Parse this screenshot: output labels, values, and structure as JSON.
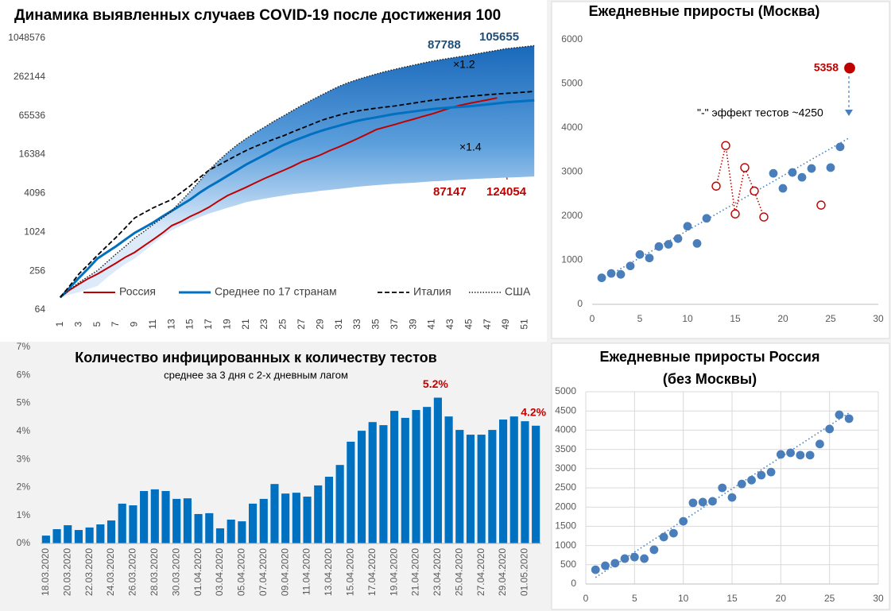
{
  "chart_data": [
    {
      "type": "line",
      "title": "Динамика выявленных случаев COVID-19 после достижения 100",
      "log_y": true,
      "grid": false,
      "legend": "bottom",
      "x": [
        1,
        2,
        3,
        4,
        5,
        6,
        7,
        8,
        9,
        10,
        11,
        12,
        13,
        14,
        15,
        16,
        17,
        18,
        19,
        20,
        21,
        22,
        23,
        24,
        25,
        26,
        27,
        28,
        29,
        30,
        31,
        32,
        33,
        34,
        35,
        36,
        37,
        38,
        39,
        40,
        41,
        42,
        43,
        44,
        45,
        46,
        47,
        48,
        49,
        50,
        51,
        52
      ],
      "xlim": [
        0.5,
        52.5
      ],
      "xticks": [
        1,
        3,
        5,
        7,
        9,
        11,
        13,
        15,
        17,
        19,
        21,
        23,
        25,
        27,
        29,
        31,
        33,
        35,
        37,
        39,
        41,
        43,
        45,
        47,
        49,
        51
      ],
      "ylim": [
        64,
        1048576
      ],
      "yticks": [
        64,
        256,
        1024,
        4096,
        16384,
        65536,
        262144,
        1048576
      ],
      "band_lower": [
        100,
        110,
        120,
        135,
        150,
        200,
        260,
        330,
        400,
        520,
        680,
        880,
        1100,
        1300,
        1500,
        1750,
        2000,
        2200,
        2450,
        2700,
        3000,
        3200,
        3400,
        3600,
        3800,
        4000,
        4150,
        4300,
        4500,
        4650,
        4800,
        5000,
        5200,
        5350,
        5500,
        5650,
        5800,
        5900,
        6000,
        6150,
        6300,
        6400,
        6550,
        6650,
        6800,
        6900,
        7000,
        7100,
        7200,
        7300,
        7400,
        7500
      ],
      "series": [
        {
          "name": "Россия",
          "color": "#c00000",
          "dash": "solid",
          "width": 2,
          "values": [
            100,
            130,
            160,
            195,
            230,
            280,
            340,
            420,
            500,
            630,
            790,
            1000,
            1300,
            1500,
            1800,
            2100,
            2500,
            3100,
            3800,
            4400,
            5100,
            6000,
            7000,
            8100,
            9300,
            10800,
            12700,
            14300,
            16200,
            18900,
            21600,
            25000,
            29000,
            34000,
            40000,
            44000,
            48000,
            53000,
            58000,
            64000,
            70000,
            78000,
            87147,
            95000,
            102000,
            109000,
            116000,
            124054,
            null,
            null,
            null,
            null
          ]
        },
        {
          "name": "Среднее по 17 странам",
          "color": "#0070c0",
          "dash": "solid",
          "width": 3,
          "values": [
            100,
            140,
            200,
            280,
            400,
            500,
            620,
            790,
            1000,
            1200,
            1450,
            1800,
            2200,
            2700,
            3300,
            4200,
            5200,
            6300,
            7700,
            9400,
            11500,
            13700,
            16300,
            19400,
            23000,
            26500,
            30000,
            34000,
            38000,
            42000,
            46000,
            50500,
            55000,
            58500,
            62000,
            66000,
            70000,
            73000,
            76500,
            80000,
            83000,
            85500,
            88000,
            90000,
            92000,
            95000,
            98500,
            102000,
            106000,
            108500,
            111000,
            114000
          ]
        },
        {
          "name": "Италия",
          "color": "#000000",
          "dash": "dashed",
          "width": 1.8,
          "values": [
            100,
            150,
            230,
            320,
            450,
            620,
            850,
            1200,
            1700,
            2050,
            2450,
            2850,
            3300,
            4200,
            5400,
            7200,
            9400,
            11200,
            13400,
            16000,
            19000,
            22000,
            25000,
            28500,
            32000,
            37000,
            42000,
            48000,
            55000,
            61000,
            67000,
            73000,
            78000,
            82000,
            86000,
            89500,
            93000,
            98000,
            103000,
            108500,
            114000,
            118000,
            122500,
            127000,
            131000,
            135000,
            139000,
            142500,
            146000,
            149000,
            152500,
            156000
          ]
        },
        {
          "name": "США",
          "color": "#222222",
          "dash": "dotted",
          "width": 1.5,
          "values": [
            100,
            130,
            170,
            210,
            260,
            350,
            470,
            620,
            830,
            1050,
            1350,
            1700,
            2200,
            3100,
            4400,
            6400,
            9400,
            13000,
            17500,
            23000,
            29000,
            36000,
            44000,
            54000,
            65000,
            79000,
            95000,
            114000,
            135000,
            160000,
            188000,
            214000,
            240000,
            265000,
            292000,
            318000,
            345000,
            372000,
            400000,
            430000,
            460000,
            487000,
            515000,
            542000,
            570000,
            605000,
            642000,
            680000,
            720000,
            746000,
            773000,
            800000
          ]
        }
      ],
      "annotations": [
        {
          "value": 87788,
          "color": "#1f4e79"
        },
        {
          "value": 105655,
          "color": "#1f4e79"
        },
        {
          "text": "×1.2",
          "color": "#000000"
        },
        {
          "text": "×1.4",
          "color": "#000000"
        },
        {
          "value": 87147,
          "color": "#c00000"
        },
        {
          "value": 124054,
          "color": "#c00000"
        }
      ]
    },
    {
      "type": "scatter",
      "title": "Ежедневные приросты (Москва)",
      "grid": false,
      "xlim": [
        0,
        30
      ],
      "xticks": [
        0,
        5,
        10,
        15,
        20,
        25,
        30
      ],
      "ylim": [
        0,
        6000
      ],
      "yticks": [
        0,
        1000,
        2000,
        3000,
        4000,
        5000,
        6000
      ],
      "series": [
        {
          "color": "#4a7ebb",
          "marker": "filled",
          "x": [
            1,
            2,
            3,
            4,
            5,
            6,
            7,
            8,
            9,
            10,
            11,
            12,
            19,
            20,
            21,
            22,
            23,
            25,
            26
          ],
          "values": [
            600,
            700,
            680,
            870,
            1130,
            1050,
            1310,
            1360,
            1490,
            1770,
            1380,
            1950,
            2970,
            2630,
            2990,
            2880,
            3080,
            3100,
            3570
          ]
        },
        {
          "color": "#c00000",
          "marker": "hollow",
          "connect": true,
          "x": [
            13,
            14,
            15,
            16,
            17,
            18
          ],
          "values": [
            2680,
            3600,
            2050,
            3100,
            2570,
            1980
          ]
        },
        {
          "color": "#c00000",
          "marker": "hollow",
          "x": [
            24
          ],
          "values": [
            2250
          ]
        },
        {
          "color": "#c00000",
          "marker": "filled",
          "data_labels": true,
          "x": [
            27
          ],
          "values": [
            5358
          ]
        }
      ],
      "trendline": {
        "color": "#4a7ebb",
        "x": [
          1,
          27
        ],
        "values": [
          560,
          3780
        ]
      },
      "annotation": "\"-\" эффект тестов ~4250"
    },
    {
      "type": "bar",
      "title": "Количество инфицированных к количеству тестов",
      "subtitle": "среднее за 3 дня с 2-х дневным лагом",
      "color": "#0070c0",
      "label_color": "#c00000",
      "grid": false,
      "categories": [
        "18.03.2020",
        null,
        "20.03.2020",
        null,
        "22.03.2020",
        null,
        "24.03.2020",
        null,
        "26.03.2020",
        null,
        "28.03.2020",
        null,
        "30.03.2020",
        null,
        "01.04.2020",
        null,
        "03.04.2020",
        null,
        "05.04.2020",
        null,
        "07.04.2020",
        null,
        "09.04.2020",
        null,
        "11.04.2020",
        null,
        "13.04.2020",
        null,
        "15.04.2020",
        null,
        "17.04.2020",
        null,
        "19.04.2020",
        null,
        "21.04.2020",
        null,
        "23.04.2020",
        null,
        "25.04.2020",
        null,
        "27.04.2020",
        null,
        "29.04.2020",
        null,
        "01.05.2020",
        null
      ],
      "values": [
        0.28,
        0.51,
        0.65,
        0.48,
        0.57,
        0.68,
        0.82,
        1.42,
        1.36,
        1.87,
        1.93,
        1.87,
        1.59,
        1.61,
        1.05,
        1.08,
        0.54,
        0.85,
        0.79,
        1.42,
        1.59,
        2.12,
        1.78,
        1.81,
        1.67,
        2.07,
        2.38,
        2.8,
        3.63,
        4.02,
        4.33,
        4.22,
        4.73,
        4.48,
        4.76,
        4.87,
        5.2,
        4.53,
        4.05,
        3.88,
        3.88,
        4.05,
        4.42,
        4.53,
        4.36,
        4.2
      ],
      "value_labels": [
        null,
        null,
        null,
        null,
        null,
        null,
        null,
        null,
        null,
        null,
        null,
        null,
        null,
        null,
        null,
        null,
        null,
        null,
        null,
        null,
        null,
        null,
        null,
        null,
        null,
        null,
        null,
        null,
        null,
        null,
        null,
        null,
        null,
        null,
        null,
        null,
        "5.2%",
        null,
        null,
        null,
        null,
        null,
        null,
        null,
        null,
        "4.2%"
      ],
      "ylim": [
        0,
        7
      ],
      "yticks": [
        {
          "value": 0,
          "label": "0%"
        },
        {
          "value": 1,
          "label": "1%"
        },
        {
          "value": 2,
          "label": "2%"
        },
        {
          "value": 3,
          "label": "3%"
        },
        {
          "value": 4,
          "label": "4%"
        },
        {
          "value": 5,
          "label": "5%"
        },
        {
          "value": 6,
          "label": "6%"
        },
        {
          "value": 7,
          "label": "7%"
        }
      ]
    },
    {
      "type": "scatter",
      "title": [
        "Ежедневные приросты Россия",
        "(без Москвы)"
      ],
      "grid": true,
      "xlim": [
        0,
        30
      ],
      "xticks": [
        0,
        5,
        10,
        15,
        20,
        25,
        30
      ],
      "ylim": [
        0,
        5000
      ],
      "yticks": [
        0,
        500,
        1000,
        1500,
        2000,
        2500,
        3000,
        3500,
        4000,
        4500,
        5000
      ],
      "series": [
        {
          "color": "#4a7ebb",
          "marker": "filled",
          "x": [
            1,
            2,
            3,
            4,
            5,
            6,
            7,
            8,
            9,
            10,
            11,
            12,
            13,
            14,
            15,
            16,
            17,
            18,
            19,
            20,
            21,
            22,
            23,
            24,
            25,
            26,
            27
          ],
          "values": [
            370,
            475,
            540,
            660,
            700,
            660,
            890,
            1220,
            1320,
            1630,
            2110,
            2130,
            2150,
            2500,
            2250,
            2600,
            2700,
            2830,
            2910,
            3370,
            3410,
            3350,
            3350,
            3640,
            4030,
            4400,
            4300
          ]
        }
      ],
      "trendline": {
        "color": "#4a7ebb",
        "x": [
          1,
          27
        ],
        "values": [
          170,
          4450
        ]
      }
    }
  ]
}
